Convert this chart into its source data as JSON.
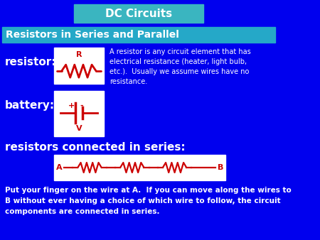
{
  "bg_color": "#0000ee",
  "title_box_color": "#3ab5c0",
  "title_text": "DC Circuits",
  "title_text_color": "#ffffff",
  "subtitle_box_color": "#25a8c8",
  "subtitle_text": "Resistors in Series and Parallel",
  "subtitle_text_color": "#ffffff",
  "white_box_color": "#ffffff",
  "red_color": "#cc0000",
  "white_color": "#ffffff",
  "resistor_label": "resistor:",
  "battery_label": "battery:",
  "series_label": "resistors connected in series:",
  "description_text": "A resistor is any circuit element that has\nelectrical resistance (heater, light bulb,\netc.).  Usually we assume wires have no\nresistance.",
  "bottom_text": "Put your finger on the wire at A.  If you can move along the wires to\nB without ever having a choice of which wire to follow, the circuit\ncomponents are connected in series."
}
